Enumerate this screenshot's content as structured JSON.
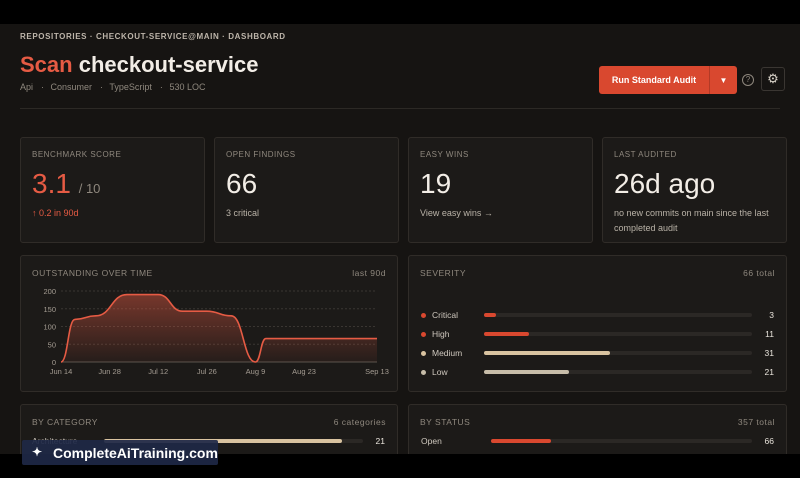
{
  "header": {
    "breadcrumb": "REPOSITORIES · CHECKOUT-SERVICE@MAIN · DASHBOARD",
    "title_accent": "Scan",
    "title_rest": "checkout-service",
    "meta": [
      "Api",
      "Consumer",
      "TypeScript",
      "530 LOC"
    ],
    "run_label": "Run Standard Audit"
  },
  "stats": {
    "benchmark": {
      "label": "BENCHMARK SCORE",
      "value": "3.1",
      "denominator": "/ 10",
      "sub": "↑ 0.2 in 90d"
    },
    "findings": {
      "label": "OPEN FINDINGS",
      "value": "66",
      "sub": "3 critical"
    },
    "easy": {
      "label": "EASY WINS",
      "value": "19",
      "sub": "View easy wins →"
    },
    "audited": {
      "label": "LAST AUDITED",
      "value": "26d ago",
      "sub": "no new commits on main since the last completed audit"
    }
  },
  "outstanding": {
    "title": "OUTSTANDING OVER TIME",
    "range": "last 90d"
  },
  "chart_data": {
    "type": "area",
    "title": "OUTSTANDING OVER TIME",
    "x_ticks": [
      "Jun 14",
      "Jun 28",
      "Jul 12",
      "Jul 26",
      "Aug 9",
      "Aug 23",
      "Sep 13"
    ],
    "y_ticks": [
      0,
      50,
      100,
      150,
      200
    ],
    "ylim": [
      0,
      200
    ],
    "x": [
      "Jun 14",
      "Jun 18",
      "Jun 24",
      "Jul 3",
      "Jul 12",
      "Jul 19",
      "Jul 26",
      "Aug 2",
      "Aug 9",
      "Aug 12",
      "Aug 23",
      "Sep 13"
    ],
    "y": [
      0,
      120,
      130,
      190,
      190,
      143,
      143,
      130,
      0,
      66,
      66,
      66
    ],
    "color": "#e65b44",
    "grid": true
  },
  "severity": {
    "title": "SEVERITY",
    "total": "66 total",
    "items": [
      {
        "name": "Critical",
        "count": "3",
        "fraction": 0.045,
        "color": "#d9482f"
      },
      {
        "name": "High",
        "count": "11",
        "fraction": 0.167,
        "color": "#d9482f"
      },
      {
        "name": "Medium",
        "count": "31",
        "fraction": 0.47,
        "color": "#d9c3a0"
      },
      {
        "name": "Low",
        "count": "21",
        "fraction": 0.318,
        "color": "#c7bda9"
      }
    ]
  },
  "category": {
    "title": "BY CATEGORY",
    "total": "6 categories",
    "items": [
      {
        "name": "Architecture",
        "count": "21",
        "fraction": 0.92,
        "color": "#d9c3a0"
      }
    ]
  },
  "status": {
    "title": "BY STATUS",
    "total": "357 total",
    "items": [
      {
        "name": "Open",
        "count": "66",
        "fraction": 0.23,
        "color": "#d9482f"
      }
    ]
  },
  "watermark": "CompleteAiTraining.com"
}
